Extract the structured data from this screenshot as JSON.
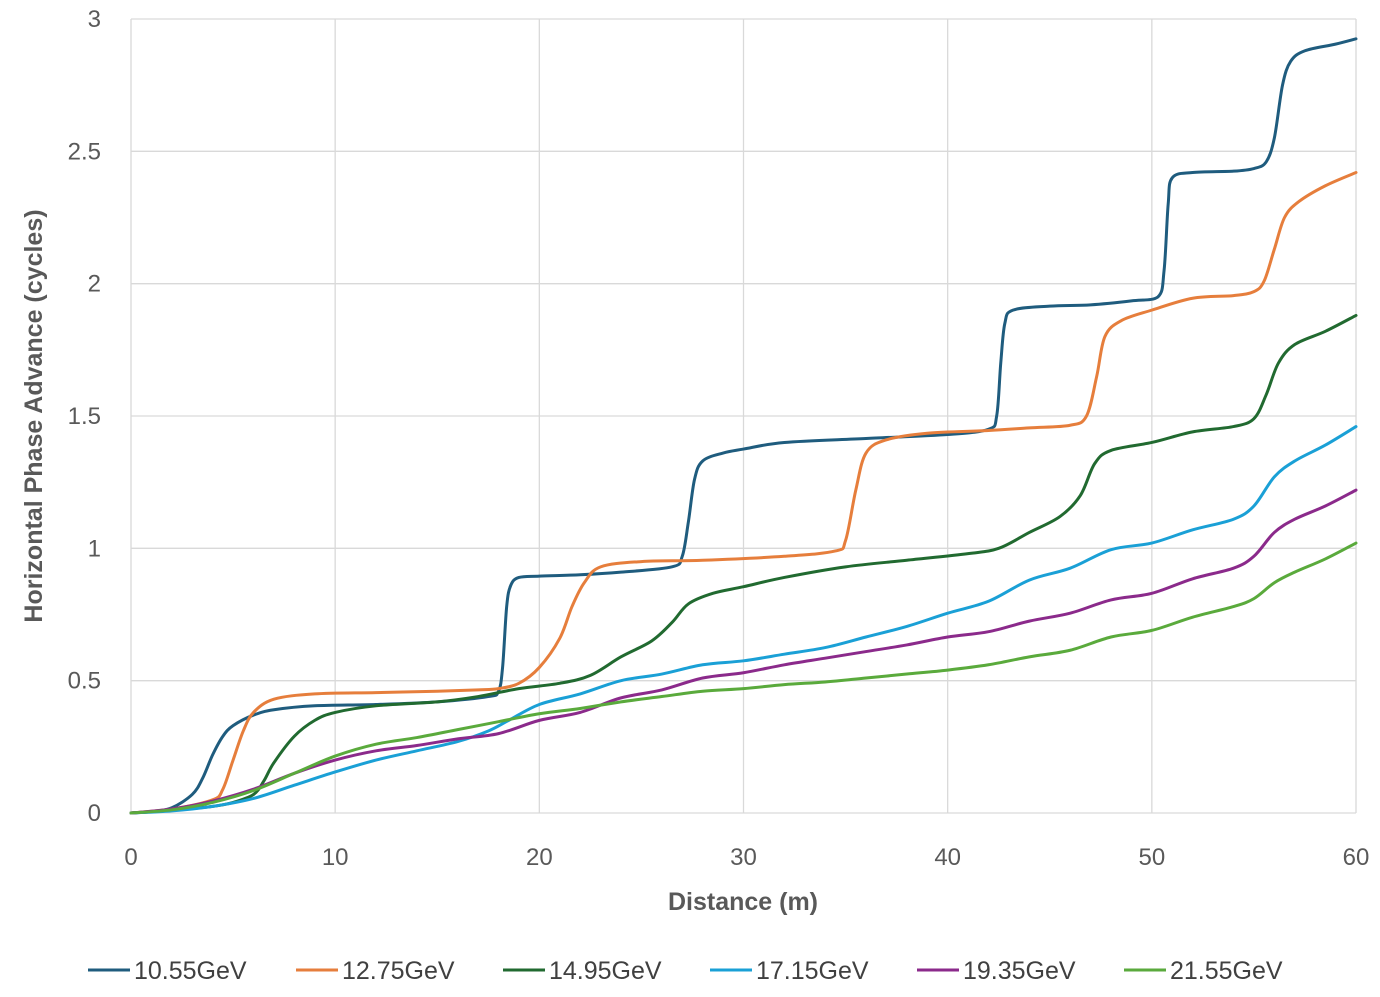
{
  "chart_data": {
    "type": "line",
    "title": "",
    "xlabel": "Distance (m)",
    "ylabel": "Horizontal Phase Advance (cycles)",
    "xlim": [
      0,
      60
    ],
    "ylim": [
      0,
      3
    ],
    "xticks": [
      0,
      10,
      20,
      30,
      40,
      50,
      60
    ],
    "yticks": [
      0,
      0.5,
      1,
      1.5,
      2,
      2.5,
      3
    ],
    "ytick_labels": [
      "0",
      "0.5",
      "1",
      "1.5",
      "2",
      "2.5",
      "3"
    ],
    "grid": true,
    "legend_position": "bottom",
    "series": [
      {
        "name": "10.55GeV",
        "color": "#1f5c7e",
        "points": [
          [
            0,
            0
          ],
          [
            1,
            0.005
          ],
          [
            2,
            0.02
          ],
          [
            3,
            0.07
          ],
          [
            3.5,
            0.13
          ],
          [
            4,
            0.22
          ],
          [
            4.5,
            0.29
          ],
          [
            5,
            0.33
          ],
          [
            6,
            0.37
          ],
          [
            7,
            0.39
          ],
          [
            9,
            0.405
          ],
          [
            12,
            0.41
          ],
          [
            15,
            0.42
          ],
          [
            17.5,
            0.44
          ],
          [
            18,
            0.46
          ],
          [
            18.2,
            0.55
          ],
          [
            18.4,
            0.78
          ],
          [
            18.6,
            0.86
          ],
          [
            19,
            0.89
          ],
          [
            20,
            0.895
          ],
          [
            22,
            0.9
          ],
          [
            24,
            0.91
          ],
          [
            26.5,
            0.93
          ],
          [
            27,
            0.97
          ],
          [
            27.3,
            1.1
          ],
          [
            27.6,
            1.26
          ],
          [
            28,
            1.33
          ],
          [
            29,
            1.36
          ],
          [
            30,
            1.375
          ],
          [
            32,
            1.4
          ],
          [
            36,
            1.415
          ],
          [
            40,
            1.43
          ],
          [
            42,
            1.45
          ],
          [
            42.4,
            1.5
          ],
          [
            42.6,
            1.7
          ],
          [
            42.8,
            1.85
          ],
          [
            43.2,
            1.9
          ],
          [
            45,
            1.915
          ],
          [
            47,
            1.92
          ],
          [
            49,
            1.935
          ],
          [
            50.3,
            1.95
          ],
          [
            50.6,
            2.05
          ],
          [
            50.8,
            2.3
          ],
          [
            51,
            2.4
          ],
          [
            52,
            2.42
          ],
          [
            54,
            2.425
          ],
          [
            55,
            2.435
          ],
          [
            55.6,
            2.46
          ],
          [
            56,
            2.55
          ],
          [
            56.4,
            2.75
          ],
          [
            56.8,
            2.84
          ],
          [
            57.5,
            2.88
          ],
          [
            59,
            2.905
          ],
          [
            60,
            2.925
          ]
        ]
      },
      {
        "name": "12.75GeV",
        "color": "#e67e3c",
        "points": [
          [
            0,
            0
          ],
          [
            2,
            0.015
          ],
          [
            4,
            0.05
          ],
          [
            4.5,
            0.09
          ],
          [
            5,
            0.2
          ],
          [
            5.5,
            0.31
          ],
          [
            6,
            0.38
          ],
          [
            7,
            0.43
          ],
          [
            9,
            0.45
          ],
          [
            12,
            0.455
          ],
          [
            15,
            0.46
          ],
          [
            17,
            0.465
          ],
          [
            18,
            0.47
          ],
          [
            19,
            0.49
          ],
          [
            20,
            0.55
          ],
          [
            21,
            0.66
          ],
          [
            21.6,
            0.78
          ],
          [
            22.2,
            0.87
          ],
          [
            23,
            0.93
          ],
          [
            25,
            0.95
          ],
          [
            28,
            0.955
          ],
          [
            32,
            0.97
          ],
          [
            34.5,
            0.99
          ],
          [
            35,
            1.03
          ],
          [
            35.5,
            1.22
          ],
          [
            36,
            1.36
          ],
          [
            37,
            1.41
          ],
          [
            39,
            1.435
          ],
          [
            42,
            1.445
          ],
          [
            44,
            1.455
          ],
          [
            46,
            1.465
          ],
          [
            46.8,
            1.5
          ],
          [
            47.3,
            1.65
          ],
          [
            47.7,
            1.8
          ],
          [
            48.5,
            1.86
          ],
          [
            50,
            1.9
          ],
          [
            52,
            1.945
          ],
          [
            54,
            1.955
          ],
          [
            55,
            1.97
          ],
          [
            55.5,
            2.01
          ],
          [
            56,
            2.13
          ],
          [
            56.5,
            2.25
          ],
          [
            57.2,
            2.31
          ],
          [
            58.5,
            2.37
          ],
          [
            60,
            2.42
          ]
        ]
      },
      {
        "name": "14.95GeV",
        "color": "#216a30",
        "points": [
          [
            0,
            0
          ],
          [
            2,
            0.01
          ],
          [
            4,
            0.025
          ],
          [
            5,
            0.04
          ],
          [
            6,
            0.07
          ],
          [
            6.5,
            0.12
          ],
          [
            7,
            0.19
          ],
          [
            8,
            0.29
          ],
          [
            9,
            0.35
          ],
          [
            10,
            0.38
          ],
          [
            12,
            0.405
          ],
          [
            15,
            0.42
          ],
          [
            17,
            0.44
          ],
          [
            19,
            0.47
          ],
          [
            21,
            0.49
          ],
          [
            22.5,
            0.52
          ],
          [
            24,
            0.59
          ],
          [
            25.5,
            0.65
          ],
          [
            26.5,
            0.72
          ],
          [
            27.3,
            0.79
          ],
          [
            28.5,
            0.83
          ],
          [
            30,
            0.855
          ],
          [
            32,
            0.89
          ],
          [
            35,
            0.93
          ],
          [
            38,
            0.955
          ],
          [
            41,
            0.98
          ],
          [
            42.5,
            1.0
          ],
          [
            44,
            1.06
          ],
          [
            45.5,
            1.12
          ],
          [
            46.5,
            1.2
          ],
          [
            47.2,
            1.32
          ],
          [
            48,
            1.37
          ],
          [
            50,
            1.4
          ],
          [
            52,
            1.44
          ],
          [
            54,
            1.46
          ],
          [
            55,
            1.49
          ],
          [
            55.6,
            1.58
          ],
          [
            56.2,
            1.7
          ],
          [
            57,
            1.77
          ],
          [
            58.5,
            1.82
          ],
          [
            60,
            1.88
          ]
        ]
      },
      {
        "name": "17.15GeV",
        "color": "#1aa0d6",
        "points": [
          [
            0,
            0
          ],
          [
            2,
            0.008
          ],
          [
            4,
            0.025
          ],
          [
            6,
            0.055
          ],
          [
            8,
            0.105
          ],
          [
            10,
            0.155
          ],
          [
            12,
            0.2
          ],
          [
            14,
            0.235
          ],
          [
            16,
            0.27
          ],
          [
            17.5,
            0.31
          ],
          [
            18.5,
            0.35
          ],
          [
            20,
            0.41
          ],
          [
            22,
            0.45
          ],
          [
            24,
            0.5
          ],
          [
            26,
            0.525
          ],
          [
            28,
            0.56
          ],
          [
            30,
            0.575
          ],
          [
            32,
            0.6
          ],
          [
            34,
            0.625
          ],
          [
            36,
            0.665
          ],
          [
            38,
            0.705
          ],
          [
            40,
            0.755
          ],
          [
            42,
            0.8
          ],
          [
            44,
            0.88
          ],
          [
            46,
            0.925
          ],
          [
            48,
            0.995
          ],
          [
            50,
            1.02
          ],
          [
            52,
            1.07
          ],
          [
            54,
            1.11
          ],
          [
            55,
            1.16
          ],
          [
            56,
            1.27
          ],
          [
            57,
            1.33
          ],
          [
            58.5,
            1.39
          ],
          [
            60,
            1.46
          ]
        ]
      },
      {
        "name": "19.35GeV",
        "color": "#8b2a8b",
        "points": [
          [
            0,
            0
          ],
          [
            2,
            0.015
          ],
          [
            4,
            0.045
          ],
          [
            6,
            0.09
          ],
          [
            8,
            0.15
          ],
          [
            10,
            0.2
          ],
          [
            12,
            0.235
          ],
          [
            14,
            0.255
          ],
          [
            16,
            0.28
          ],
          [
            18,
            0.3
          ],
          [
            20,
            0.35
          ],
          [
            22,
            0.38
          ],
          [
            24,
            0.435
          ],
          [
            26,
            0.465
          ],
          [
            28,
            0.51
          ],
          [
            30,
            0.53
          ],
          [
            32,
            0.56
          ],
          [
            34,
            0.585
          ],
          [
            36,
            0.61
          ],
          [
            38,
            0.635
          ],
          [
            40,
            0.665
          ],
          [
            42,
            0.685
          ],
          [
            44,
            0.725
          ],
          [
            46,
            0.755
          ],
          [
            48,
            0.805
          ],
          [
            50,
            0.83
          ],
          [
            52,
            0.885
          ],
          [
            54,
            0.925
          ],
          [
            55,
            0.97
          ],
          [
            56,
            1.06
          ],
          [
            57,
            1.11
          ],
          [
            58.5,
            1.16
          ],
          [
            60,
            1.22
          ]
        ]
      },
      {
        "name": "21.55GeV",
        "color": "#5aaa3c",
        "points": [
          [
            0,
            0
          ],
          [
            2,
            0.012
          ],
          [
            4,
            0.04
          ],
          [
            6,
            0.085
          ],
          [
            8,
            0.15
          ],
          [
            10,
            0.215
          ],
          [
            12,
            0.26
          ],
          [
            14,
            0.285
          ],
          [
            16,
            0.315
          ],
          [
            18,
            0.345
          ],
          [
            20,
            0.375
          ],
          [
            22,
            0.395
          ],
          [
            24,
            0.42
          ],
          [
            26,
            0.44
          ],
          [
            28,
            0.46
          ],
          [
            30,
            0.47
          ],
          [
            32,
            0.485
          ],
          [
            34,
            0.495
          ],
          [
            36,
            0.51
          ],
          [
            38,
            0.525
          ],
          [
            40,
            0.54
          ],
          [
            42,
            0.56
          ],
          [
            44,
            0.59
          ],
          [
            46,
            0.615
          ],
          [
            48,
            0.665
          ],
          [
            50,
            0.69
          ],
          [
            52,
            0.74
          ],
          [
            54,
            0.78
          ],
          [
            55,
            0.81
          ],
          [
            56,
            0.87
          ],
          [
            57,
            0.91
          ],
          [
            58.5,
            0.96
          ],
          [
            60,
            1.02
          ]
        ]
      }
    ]
  }
}
